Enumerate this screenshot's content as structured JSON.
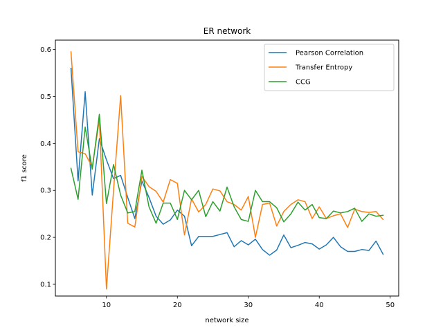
{
  "chart_data": {
    "type": "line",
    "title": "ER network",
    "xlabel": "network size",
    "ylabel": "f1 score",
    "xlim": [
      2.8,
      51.2
    ],
    "ylim": [
      0.075,
      0.62
    ],
    "xticks": [
      10,
      20,
      30,
      40,
      50
    ],
    "yticks": [
      0.1,
      0.2,
      0.3,
      0.4,
      0.5,
      0.6
    ],
    "xtick_labels": [
      "10",
      "20",
      "30",
      "40",
      "50"
    ],
    "ytick_labels": [
      "0.1",
      "0.2",
      "0.3",
      "0.4",
      "0.5",
      "0.6"
    ],
    "grid": false,
    "legend_position": "top-right",
    "x": [
      5,
      6,
      7,
      8,
      9,
      10,
      11,
      12,
      13,
      14,
      15,
      16,
      17,
      18,
      19,
      20,
      21,
      22,
      23,
      24,
      25,
      26,
      27,
      28,
      29,
      30,
      31,
      32,
      33,
      34,
      35,
      36,
      37,
      38,
      39,
      40,
      41,
      42,
      43,
      44,
      45,
      46,
      47,
      48,
      49
    ],
    "series": [
      {
        "name": "Pearson Correlation",
        "color": "#1f77b4",
        "values": [
          0.56,
          0.32,
          0.51,
          0.29,
          0.41,
          0.365,
          0.325,
          0.332,
          0.285,
          0.24,
          0.32,
          0.285,
          0.245,
          0.228,
          0.237,
          0.258,
          0.245,
          0.182,
          0.202,
          0.202,
          0.202,
          0.206,
          0.21,
          0.18,
          0.193,
          0.184,
          0.196,
          0.174,
          0.162,
          0.173,
          0.205,
          0.178,
          0.183,
          0.189,
          0.186,
          0.175,
          0.184,
          0.2,
          0.18,
          0.17,
          0.17,
          0.174,
          0.172,
          0.192,
          0.164
        ]
      },
      {
        "name": "Transfer Entropy",
        "color": "#ff7f0e",
        "values": [
          0.595,
          0.382,
          0.378,
          0.35,
          0.45,
          0.09,
          0.3,
          0.502,
          0.23,
          0.222,
          0.33,
          0.308,
          0.298,
          0.275,
          0.323,
          0.315,
          0.205,
          0.282,
          0.254,
          0.27,
          0.303,
          0.299,
          0.276,
          0.27,
          0.258,
          0.287,
          0.2,
          0.27,
          0.273,
          0.224,
          0.255,
          0.27,
          0.28,
          0.276,
          0.24,
          0.265,
          0.24,
          0.246,
          0.25,
          0.221,
          0.26,
          0.255,
          0.253,
          0.255,
          0.238
        ]
      },
      {
        "name": "CCG",
        "color": "#2ca02c",
        "values": [
          0.347,
          0.281,
          0.435,
          0.345,
          0.462,
          0.272,
          0.355,
          0.29,
          0.252,
          0.255,
          0.343,
          0.265,
          0.23,
          0.273,
          0.273,
          0.238,
          0.3,
          0.28,
          0.3,
          0.244,
          0.276,
          0.256,
          0.307,
          0.265,
          0.238,
          0.234,
          0.3,
          0.276,
          0.276,
          0.263,
          0.233,
          0.25,
          0.275,
          0.258,
          0.27,
          0.242,
          0.24,
          0.256,
          0.252,
          0.255,
          0.262,
          0.234,
          0.25,
          0.245,
          0.247
        ]
      }
    ]
  }
}
